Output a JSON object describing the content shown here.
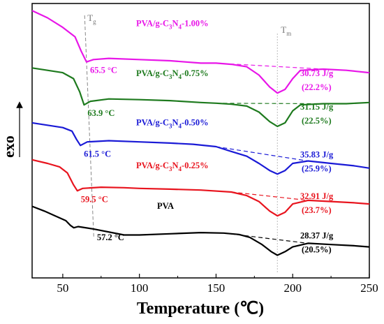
{
  "chart_data": {
    "type": "line",
    "xlabel": "Temperature (℃)",
    "ylabel": "exo",
    "xlim": [
      30,
      250
    ],
    "xticks": [
      "50",
      "100",
      "150",
      "200",
      "250"
    ],
    "grid": false,
    "legend": "none",
    "markers": {
      "tg": "T",
      "tg_sub": "g",
      "tm": "T",
      "tm_sub": "m"
    },
    "series": [
      {
        "name": "PVA/g-C3N4-1.00%",
        "label_main": "PVA/g-C",
        "label_sub": "3",
        "label_mid": "N",
        "label_sub2": "4",
        "label_end": "-1.00%",
        "color": "#e816e8",
        "tg_label": "65.5 °C",
        "enthalpy": "30.73 J/g",
        "crystallinity": "(22.2%)",
        "offset": 0.905,
        "points": [
          [
            30,
            0.97
          ],
          [
            40,
            0.94
          ],
          [
            50,
            0.9
          ],
          [
            58,
            0.86
          ],
          [
            62,
            0.8
          ],
          [
            65.5,
            0.755
          ],
          [
            70,
            0.765
          ],
          [
            80,
            0.77
          ],
          [
            100,
            0.765
          ],
          [
            120,
            0.76
          ],
          [
            140,
            0.75
          ],
          [
            150,
            0.75
          ],
          [
            160,
            0.745
          ],
          [
            170,
            0.735
          ],
          [
            178,
            0.7
          ],
          [
            185,
            0.65
          ],
          [
            190,
            0.625
          ],
          [
            195,
            0.64
          ],
          [
            200,
            0.685
          ],
          [
            205,
            0.72
          ],
          [
            220,
            0.725
          ],
          [
            235,
            0.72
          ],
          [
            250,
            0.71
          ]
        ]
      },
      {
        "name": "PVA/g-C3N4-0.75%",
        "label_main": "PVA/g-C",
        "label_sub": "3",
        "label_mid": "N",
        "label_sub2": "4",
        "label_end": "-0.75%",
        "color": "#1e7a1e",
        "tg_label": "63.9 °C",
        "enthalpy": "31.15 J/g",
        "crystallinity": "(22.5%)",
        "offset": 0.695,
        "points": [
          [
            30,
            0.73
          ],
          [
            40,
            0.72
          ],
          [
            50,
            0.71
          ],
          [
            57,
            0.685
          ],
          [
            61,
            0.63
          ],
          [
            63.9,
            0.575
          ],
          [
            68,
            0.59
          ],
          [
            80,
            0.6
          ],
          [
            100,
            0.597
          ],
          [
            120,
            0.593
          ],
          [
            140,
            0.585
          ],
          [
            150,
            0.582
          ],
          [
            160,
            0.578
          ],
          [
            170,
            0.57
          ],
          [
            178,
            0.545
          ],
          [
            185,
            0.505
          ],
          [
            190,
            0.485
          ],
          [
            195,
            0.5
          ],
          [
            200,
            0.55
          ],
          [
            205,
            0.575
          ],
          [
            220,
            0.58
          ],
          [
            235,
            0.58
          ],
          [
            250,
            0.585
          ]
        ]
      },
      {
        "name": "PVA/g-C3N4-0.50%",
        "label_main": "PVA/g-C",
        "label_sub": "3",
        "label_mid": "N",
        "label_sub2": "4",
        "label_end": "-0.50%",
        "color": "#1a1ad6",
        "tg_label": "61.5 °C",
        "enthalpy": "35.83 J/g",
        "crystallinity": "(25.9%)",
        "offset": 0.49,
        "points": [
          [
            30,
            0.5
          ],
          [
            40,
            0.49
          ],
          [
            50,
            0.48
          ],
          [
            56,
            0.465
          ],
          [
            59,
            0.43
          ],
          [
            61.5,
            0.405
          ],
          [
            66,
            0.42
          ],
          [
            80,
            0.425
          ],
          [
            100,
            0.42
          ],
          [
            120,
            0.415
          ],
          [
            135,
            0.41
          ],
          [
            150,
            0.4
          ],
          [
            160,
            0.38
          ],
          [
            170,
            0.36
          ],
          [
            178,
            0.33
          ],
          [
            185,
            0.3
          ],
          [
            190,
            0.285
          ],
          [
            195,
            0.3
          ],
          [
            200,
            0.33
          ],
          [
            210,
            0.34
          ],
          [
            225,
            0.33
          ],
          [
            240,
            0.32
          ],
          [
            250,
            0.31
          ]
        ]
      },
      {
        "name": "PVA/g-C3N4-0.25%",
        "label_main": "PVA/g-C",
        "label_sub": "3",
        "label_mid": "N",
        "label_sub2": "4",
        "label_end": "-0.25%",
        "color": "#e8141e",
        "tg_label": "59.5 °C",
        "enthalpy": "32.91 J/g",
        "crystallinity": "(23.7%)",
        "offset": 0.31,
        "points": [
          [
            30,
            0.345
          ],
          [
            40,
            0.33
          ],
          [
            48,
            0.315
          ],
          [
            53,
            0.29
          ],
          [
            57,
            0.24
          ],
          [
            59.5,
            0.215
          ],
          [
            63,
            0.225
          ],
          [
            75,
            0.23
          ],
          [
            90,
            0.228
          ],
          [
            100,
            0.225
          ],
          [
            120,
            0.222
          ],
          [
            140,
            0.218
          ],
          [
            160,
            0.21
          ],
          [
            170,
            0.195
          ],
          [
            178,
            0.17
          ],
          [
            185,
            0.13
          ],
          [
            190,
            0.11
          ],
          [
            195,
            0.125
          ],
          [
            200,
            0.16
          ],
          [
            210,
            0.175
          ],
          [
            225,
            0.17
          ],
          [
            240,
            0.165
          ],
          [
            250,
            0.16
          ]
        ]
      },
      {
        "name": "PVA",
        "label_main": "PVA",
        "label_sub": "",
        "label_mid": "",
        "label_sub2": "",
        "label_end": "",
        "color": "#000000",
        "tg_label": "57.2 °C",
        "enthalpy": "28.37 J/g",
        "crystallinity": "(20.5%)",
        "offset": 0.14,
        "points": [
          [
            30,
            0.15
          ],
          [
            38,
            0.13
          ],
          [
            45,
            0.11
          ],
          [
            52,
            0.09
          ],
          [
            55,
            0.07
          ],
          [
            57.2,
            0.06
          ],
          [
            60,
            0.065
          ],
          [
            70,
            0.055
          ],
          [
            90,
            0.03
          ],
          [
            100,
            0.03
          ],
          [
            120,
            0.035
          ],
          [
            140,
            0.04
          ],
          [
            155,
            0.038
          ],
          [
            165,
            0.032
          ],
          [
            172,
            0.02
          ],
          [
            180,
            -0.01
          ],
          [
            186,
            -0.04
          ],
          [
            190,
            -0.055
          ],
          [
            195,
            -0.04
          ],
          [
            200,
            -0.02
          ],
          [
            210,
            -0.005
          ],
          [
            225,
            -0.01
          ],
          [
            240,
            -0.015
          ],
          [
            250,
            -0.02
          ]
        ]
      }
    ]
  }
}
